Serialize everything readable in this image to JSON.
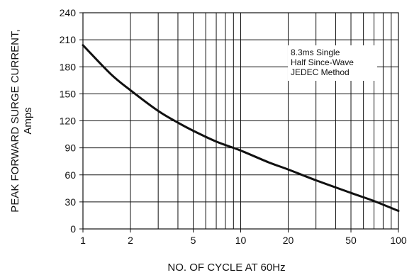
{
  "chart_data": {
    "type": "line",
    "xscale": "log",
    "grid": true,
    "xlabel": "NO. OF CYCLE AT 60Hz",
    "ylabel_line1": "PEAK FORWARD SURGE CURRENT,",
    "ylabel_line2": "Amps",
    "xlim": [
      1,
      100
    ],
    "ylim": [
      0,
      240
    ],
    "x_tick_labels": [
      "1",
      "2",
      "5",
      "10",
      "20",
      "50",
      "100"
    ],
    "x_tick_values": [
      1,
      2,
      5,
      10,
      20,
      50,
      100
    ],
    "y_tick_values": [
      0,
      30,
      60,
      90,
      120,
      150,
      180,
      210,
      240
    ],
    "y_tick_labels": [
      "0",
      "30",
      "60",
      "90",
      "120",
      "150",
      "180",
      "210",
      "240"
    ],
    "annotation_lines": [
      "8.3ms Single",
      "Half Since-Wave",
      "JEDEC Method"
    ],
    "series": [
      {
        "x": [
          1,
          1.5,
          2,
          3,
          4,
          5,
          7,
          10,
          15,
          20,
          30,
          50,
          70,
          100
        ],
        "y": [
          204,
          172,
          154,
          131,
          118,
          109,
          97,
          87,
          74,
          66,
          54,
          40,
          31,
          20
        ]
      }
    ],
    "line_color": "#111111"
  }
}
